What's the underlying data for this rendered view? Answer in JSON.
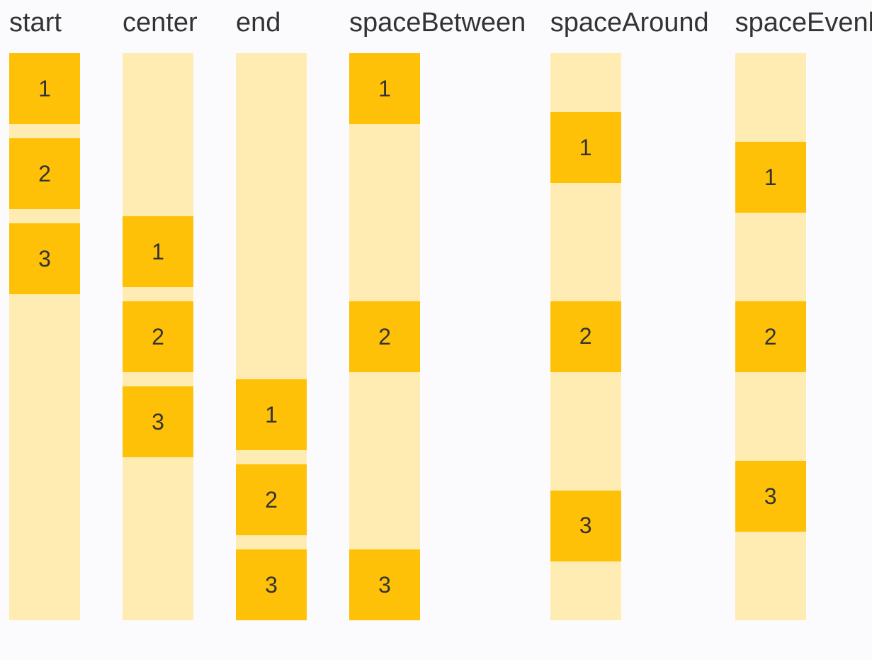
{
  "page": {
    "background": "#fbfbfe"
  },
  "colors": {
    "box": "#ffc107",
    "track": "#ffecb3",
    "text": "#333333"
  },
  "columns": [
    {
      "label": "start",
      "justify": "flex-start",
      "gapped": true,
      "items": [
        "1",
        "2",
        "3"
      ]
    },
    {
      "label": "center",
      "justify": "center",
      "gapped": true,
      "items": [
        "1",
        "2",
        "3"
      ]
    },
    {
      "label": "end",
      "justify": "flex-end",
      "gapped": true,
      "items": [
        "1",
        "2",
        "3"
      ]
    },
    {
      "label": "spaceBetween",
      "justify": "space-between",
      "gapped": false,
      "items": [
        "1",
        "2",
        "3"
      ]
    },
    {
      "label": "spaceAround",
      "justify": "space-around",
      "gapped": false,
      "items": [
        "1",
        "2",
        "3"
      ]
    },
    {
      "label": "spaceEvenly",
      "justify": "space-evenly",
      "gapped": false,
      "items": [
        "1",
        "2",
        "3"
      ]
    }
  ]
}
